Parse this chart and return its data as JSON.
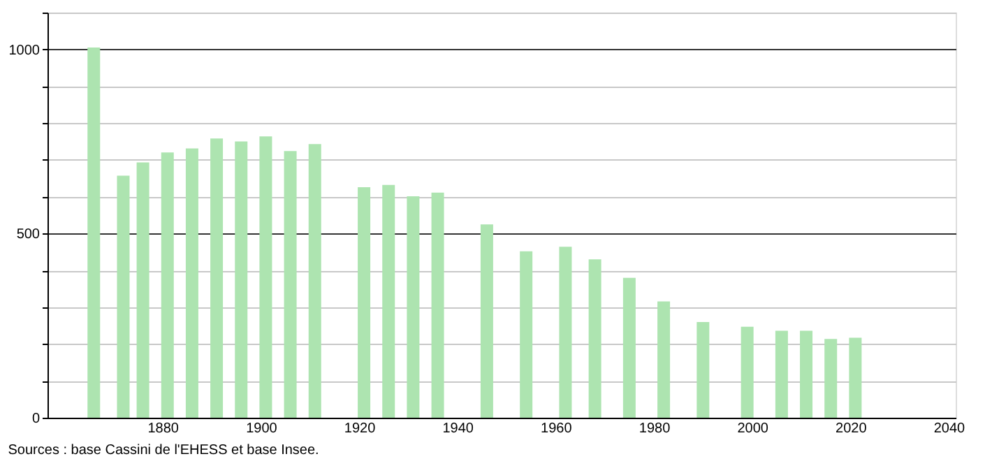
{
  "chart_data": {
    "type": "bar",
    "color": "#ade4b0",
    "x": [
      1866,
      1872,
      1876,
      1881,
      1886,
      1891,
      1896,
      1901,
      1906,
      1911,
      1921,
      1926,
      1931,
      1936,
      1946,
      1954,
      1962,
      1968,
      1975,
      1982,
      1990,
      1999,
      2006,
      2011,
      2016,
      2021
    ],
    "values": [
      1005,
      657,
      693,
      720,
      731,
      758,
      750,
      764,
      724,
      743,
      626,
      632,
      601,
      611,
      525,
      452,
      464,
      430,
      380,
      316,
      260,
      247,
      236,
      236,
      214,
      217
    ],
    "xlim": [
      1858,
      2040
    ],
    "xticks": [
      1880,
      1900,
      1920,
      1940,
      1960,
      1980,
      2000,
      2020,
      2040
    ],
    "ylim": [
      0,
      1100
    ],
    "yticks": [
      0,
      {
        "value": 100,
        "label": null
      },
      {
        "value": 200,
        "label": null
      },
      {
        "value": 300,
        "label": null
      },
      {
        "value": 400,
        "label": null
      },
      500,
      {
        "value": 600,
        "label": null
      },
      {
        "value": 700,
        "label": null
      },
      {
        "value": 800,
        "label": null
      },
      {
        "value": 900,
        "label": null
      },
      1000,
      {
        "value": 1100,
        "label": null
      }
    ],
    "grid": "y",
    "annotations": [
      "Sources : base Cassini de l'EHESS et base Insee."
    ]
  }
}
